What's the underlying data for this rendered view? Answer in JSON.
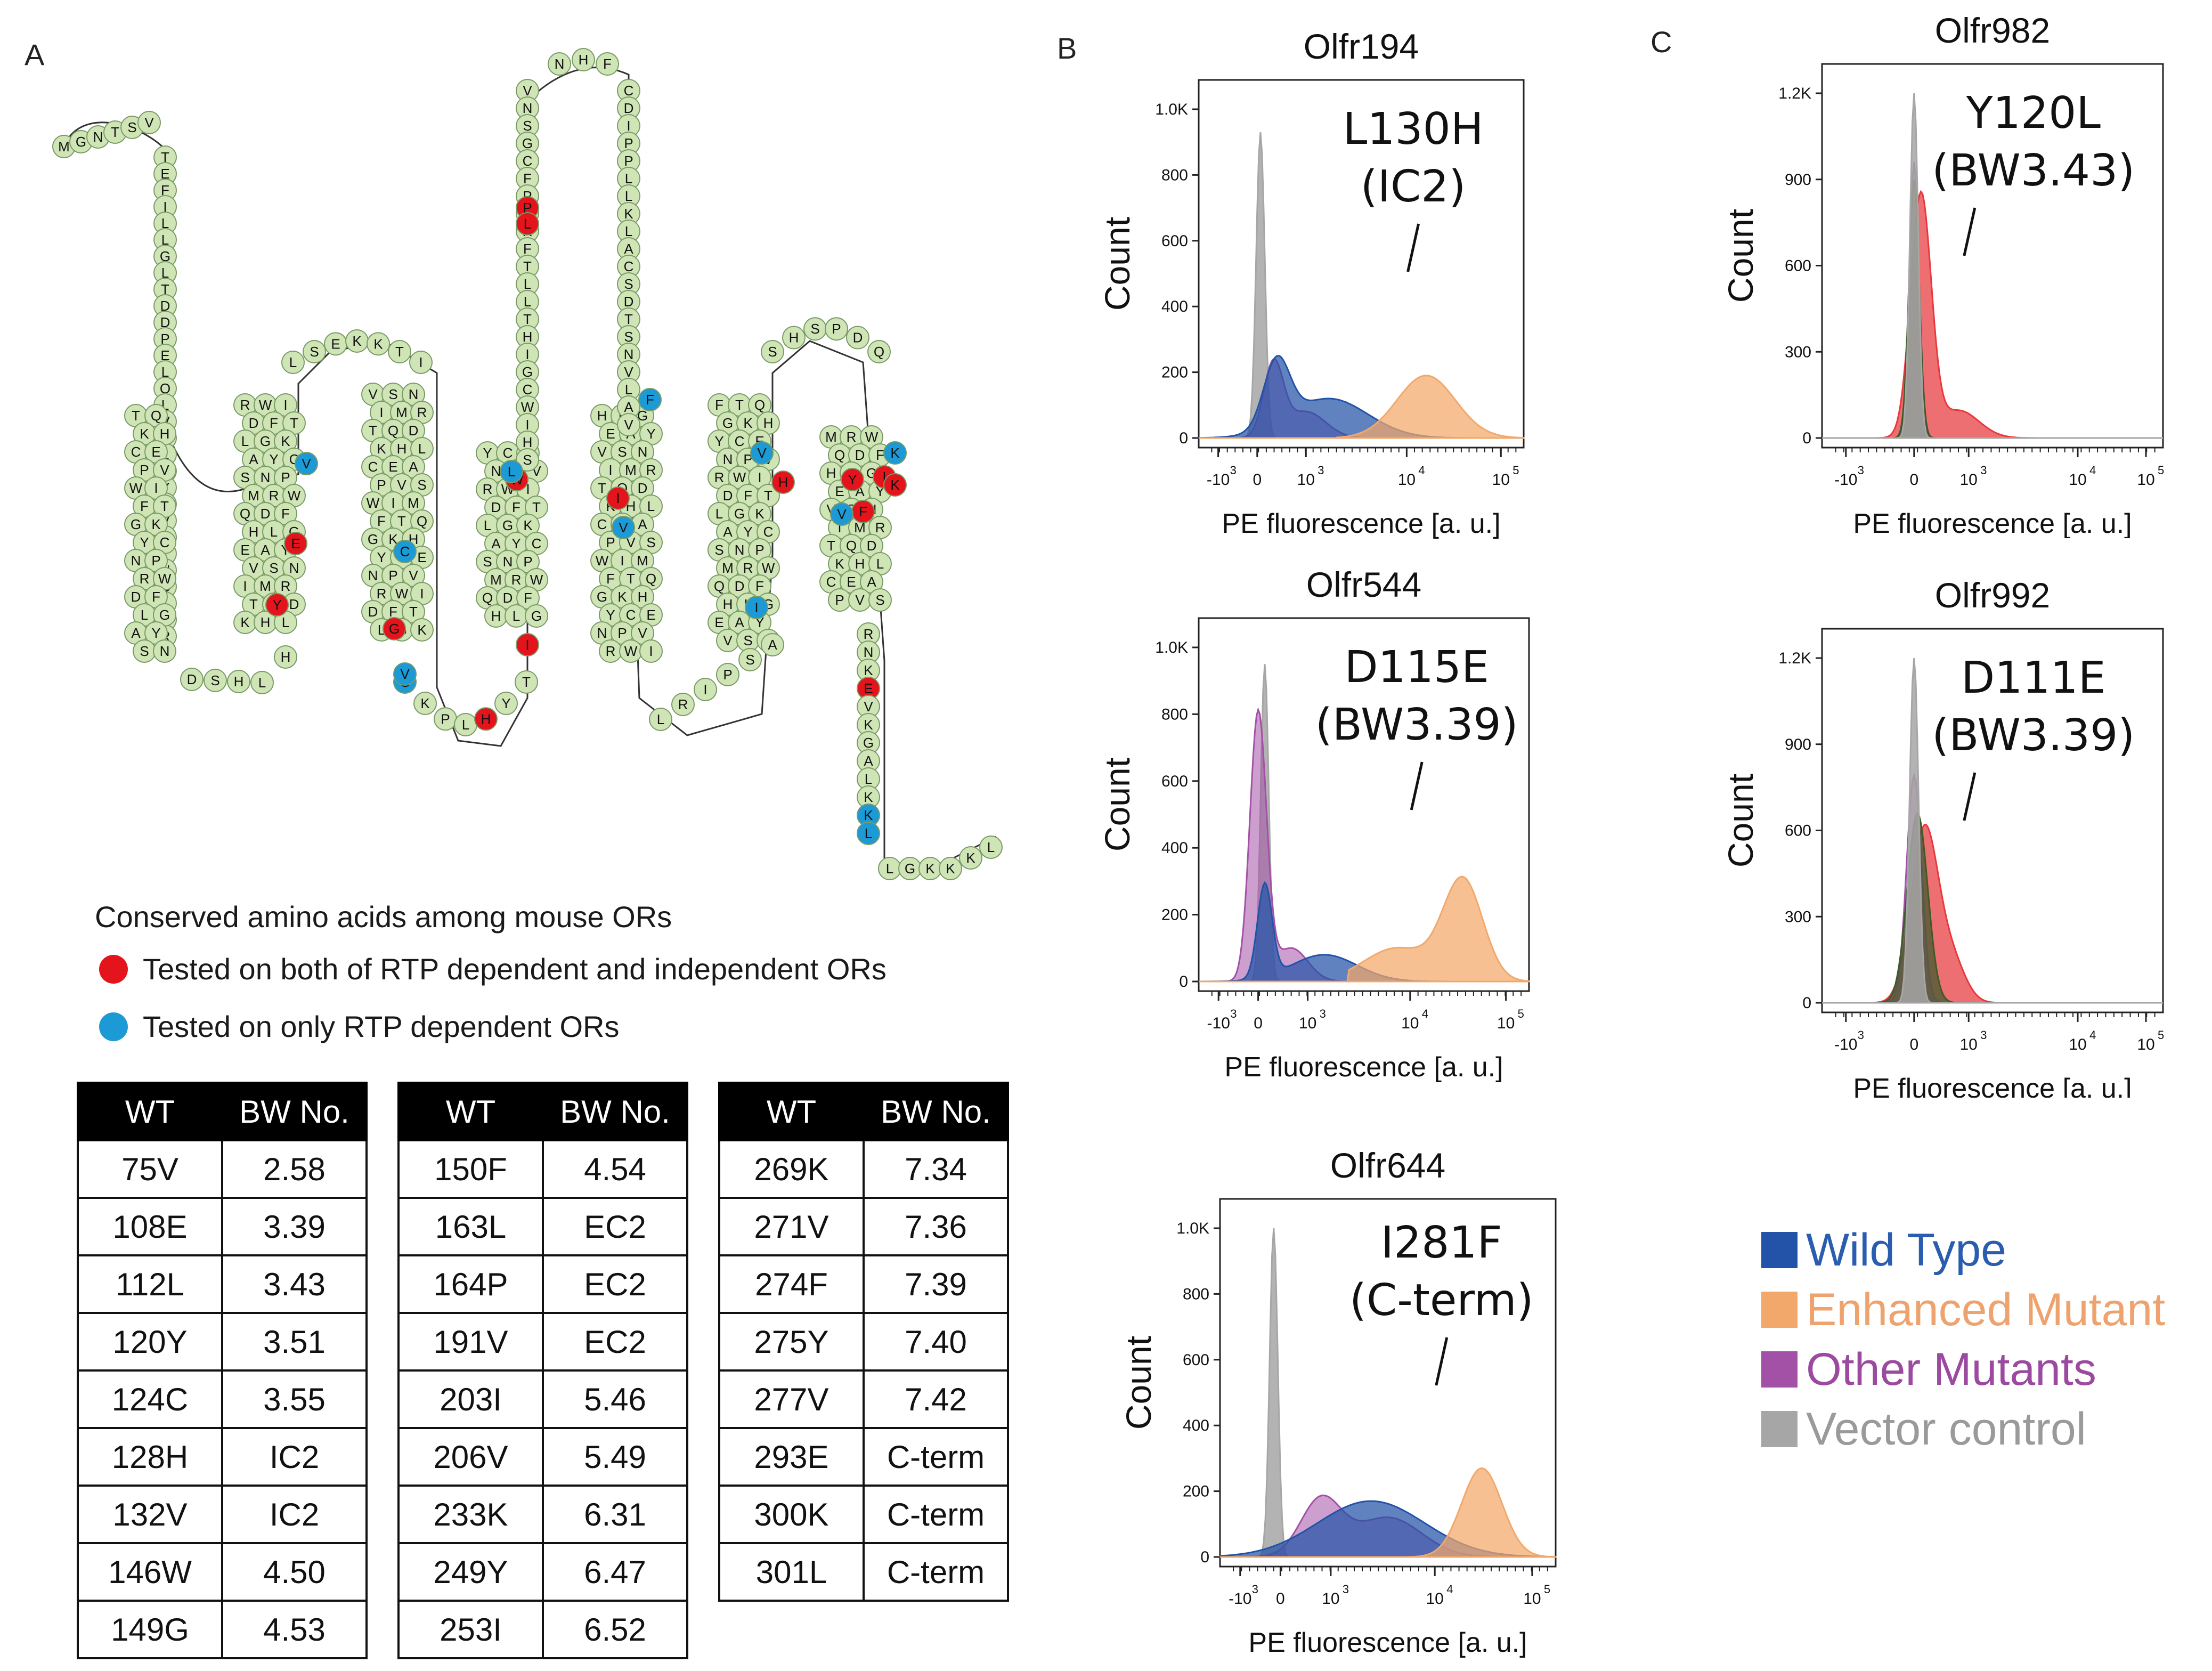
{
  "panel_labels": {
    "a": "A",
    "b": "B",
    "c": "C"
  },
  "snake": {
    "n_term": "MGNTSV",
    "tm_residues": [
      "T",
      "E",
      "F",
      "I",
      "L",
      "L",
      "G",
      "L",
      "T",
      "D",
      "D",
      "P",
      "E",
      "L",
      "Q",
      "L",
      "V",
      "F",
      "L",
      "L",
      "Y",
      "T",
      "V",
      "L",
      "I",
      "N",
      "G",
      "I",
      "L",
      "R"
    ],
    "ec2_top": "N H F",
    "c_term": "L G K K K L",
    "loop_il1": "D S H L H",
    "loop_el1": "L S E K K T I",
    "loop_il2": "C K P L H Y T",
    "loop_il3": "L R I P S A",
    "loop_el3": "S H S P D Q",
    "red_residues": [
      "P",
      "L",
      "E",
      "Y",
      "G",
      "W",
      "I",
      "I",
      "H",
      "Y",
      "I",
      "K",
      "F",
      "Y",
      "E"
    ],
    "blue_residues": [
      "V",
      "L",
      "C",
      "F",
      "V",
      "V",
      "I",
      "K",
      "V",
      "V",
      "K",
      "L"
    ]
  },
  "legend_a": {
    "heading": "Conserved amino acids among mouse ORs",
    "red": "Tested on both of RTP dependent and independent ORs",
    "blue": "Tested on only RTP dependent ORs",
    "red_color": "#e3141b",
    "blue_color": "#1c9ad6"
  },
  "tables": [
    {
      "headers": [
        "WT",
        "BW No."
      ],
      "rows": [
        [
          "75V",
          "2.58"
        ],
        [
          "108E",
          "3.39"
        ],
        [
          "112L",
          "3.43"
        ],
        [
          "120Y",
          "3.51"
        ],
        [
          "124C",
          "3.55"
        ],
        [
          "128H",
          "IC2"
        ],
        [
          "132V",
          "IC2"
        ],
        [
          "146W",
          "4.50"
        ],
        [
          "149G",
          "4.53"
        ]
      ]
    },
    {
      "headers": [
        "WT",
        "BW No."
      ],
      "rows": [
        [
          "150F",
          "4.54"
        ],
        [
          "163L",
          "EC2"
        ],
        [
          "164P",
          "EC2"
        ],
        [
          "191V",
          "EC2"
        ],
        [
          "203I",
          "5.46"
        ],
        [
          "206V",
          "5.49"
        ],
        [
          "233K",
          "6.31"
        ],
        [
          "249Y",
          "6.47"
        ],
        [
          "253I",
          "6.52"
        ]
      ]
    },
    {
      "headers": [
        "WT",
        "BW No."
      ],
      "rows": [
        [
          "269K",
          "7.34"
        ],
        [
          "271V",
          "7.36"
        ],
        [
          "274F",
          "7.39"
        ],
        [
          "275Y",
          "7.40"
        ],
        [
          "277V",
          "7.42"
        ],
        [
          "293E",
          "C-term"
        ],
        [
          "300K",
          "C-term"
        ],
        [
          "301L",
          "C-term"
        ]
      ]
    }
  ],
  "chart_data": [
    {
      "type": "area",
      "title": "Olfr194",
      "xlabel": "PE fluorescence [a. u.]",
      "ylabel": "Count",
      "yticks": [
        "0",
        "200",
        "400",
        "600",
        "800",
        "1.0K"
      ],
      "xticks": [
        "-10",
        "0",
        "10",
        "10",
        "10"
      ],
      "xtick_exp": [
        "3",
        "",
        "3",
        "4",
        "5"
      ],
      "annotation": [
        "L130H",
        "(IC2)"
      ]
    },
    {
      "type": "area",
      "title": "Olfr544",
      "xlabel": "PE fluorescence [a. u.]",
      "ylabel": "Count",
      "yticks": [
        "0",
        "200",
        "400",
        "600",
        "800",
        "1.0K"
      ],
      "xticks": [
        "-10",
        "0",
        "10",
        "10",
        "10"
      ],
      "xtick_exp": [
        "3",
        "",
        "3",
        "4",
        "5"
      ],
      "annotation": [
        "D115E",
        "(BW3.39)"
      ]
    },
    {
      "type": "area",
      "title": "Olfr644",
      "xlabel": "PE fluorescence [a. u.]",
      "ylabel": "Count",
      "yticks": [
        "0",
        "200",
        "400",
        "600",
        "800",
        "1.0K"
      ],
      "xticks": [
        "-10",
        "0",
        "10",
        "10",
        "10"
      ],
      "xtick_exp": [
        "3",
        "",
        "3",
        "4",
        "5"
      ],
      "annotation": [
        "I281F",
        "(C-term)"
      ]
    },
    {
      "type": "area",
      "title": "Olfr982",
      "xlabel": "PE fluorescence [a. u.]",
      "ylabel": "Count",
      "yticks": [
        "0",
        "300",
        "600",
        "900",
        "1.2K"
      ],
      "xticks": [
        "-10",
        "0",
        "10",
        "10",
        "10"
      ],
      "xtick_exp": [
        "3",
        "",
        "3",
        "4",
        "5"
      ],
      "annotation": [
        "Y120L",
        "(BW3.43)"
      ]
    },
    {
      "type": "area",
      "title": "Olfr992",
      "xlabel": "PE fluorescence [a. u.]",
      "ylabel": "Count",
      "yticks": [
        "0",
        "300",
        "600",
        "900",
        "1.2K"
      ],
      "xticks": [
        "-10",
        "0",
        "10",
        "10",
        "10"
      ],
      "xtick_exp": [
        "3",
        "",
        "3",
        "4",
        "5"
      ],
      "annotation": [
        "D111E",
        "(BW3.39)"
      ]
    }
  ],
  "legend_bc": {
    "items": [
      {
        "label": "Wild Type",
        "color": "#2253a8",
        "text_color": "#2a5db0"
      },
      {
        "label": "Enhanced Mutant",
        "color": "#f2a86a",
        "text_color": "#eea36f"
      },
      {
        "label": "Other Mutants",
        "color": "#a351a6",
        "text_color": "#9b4aa0"
      },
      {
        "label": "Vector control",
        "color": "#a6a6a6",
        "text_color": "#9a9a9a"
      }
    ]
  }
}
